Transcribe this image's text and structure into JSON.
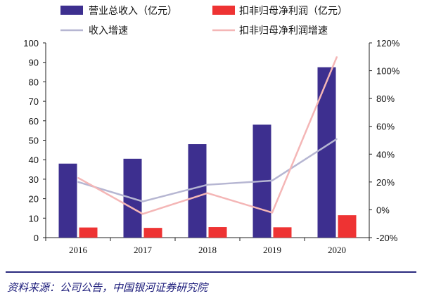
{
  "chart_data": {
    "type": "bar",
    "categories": [
      "2016",
      "2017",
      "2018",
      "2019",
      "2020"
    ],
    "series": [
      {
        "name": "营业总收入（亿元）",
        "kind": "bar",
        "axis": "left",
        "color": "#3d2f8f",
        "values": [
          38,
          40.5,
          48,
          58,
          87.5
        ]
      },
      {
        "name": "扣非归母净利润（亿元）",
        "kind": "bar",
        "axis": "left",
        "color": "#ee3333",
        "values": [
          5.2,
          5,
          5.4,
          5.3,
          11.5
        ]
      },
      {
        "name": "收入增速",
        "kind": "line",
        "axis": "right",
        "color": "#b6b6d2",
        "values": [
          20,
          6,
          18,
          21,
          51
        ]
      },
      {
        "name": "扣非归母净利润增速",
        "kind": "line",
        "axis": "right",
        "color": "#f4b6b6",
        "values": [
          23,
          -3,
          12,
          -2,
          110
        ]
      }
    ],
    "ylim": [
      0,
      100
    ],
    "yticks": [
      "0",
      "10",
      "20",
      "30",
      "40",
      "50",
      "60",
      "70",
      "80",
      "90",
      "100"
    ],
    "y2lim": [
      -20,
      120
    ],
    "y2ticks": [
      "-20%",
      "0%",
      "20%",
      "40%",
      "60%",
      "80%",
      "100%",
      "120%"
    ],
    "legend": "top",
    "grid": false
  },
  "source": "资料来源：公司公告，中国银河证券研究院"
}
